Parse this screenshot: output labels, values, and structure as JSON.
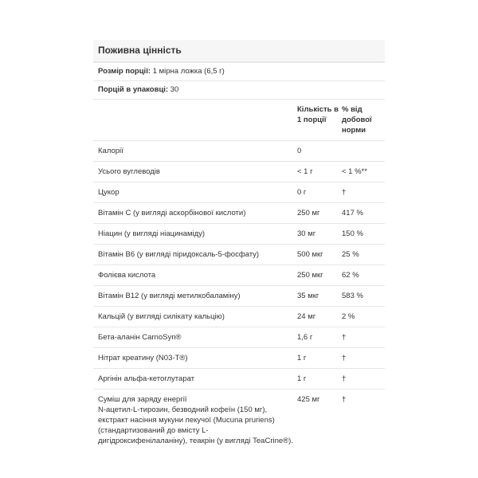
{
  "title": "Поживна цінність",
  "serving_size": {
    "label": "Розмір порції:",
    "value": "1 мірна ложка (6,5 г)"
  },
  "servings": {
    "label": "Порцій в упаковці:",
    "value": "30"
  },
  "headers": {
    "amount": "Кількість в 1 порції",
    "dv": "% від добової норми"
  },
  "rows": [
    {
      "name": "Калорії",
      "amount": "0",
      "dv": ""
    },
    {
      "name": "Усього вуглеводів",
      "amount": "< 1 г",
      "dv": "< 1 %**"
    },
    {
      "name": "Цукор",
      "amount": "0 г",
      "dv": "†"
    },
    {
      "name": "Вітамін C (у вигляді аскорбінової кислоти)",
      "amount": "250 мг",
      "dv": "417 %"
    },
    {
      "name": "Ніацин (у вигляді ніацинаміду)",
      "amount": "30 мг",
      "dv": "150 %"
    },
    {
      "name": "Вітамін B6 (у вигляді піридоксаль-5-фосфату)",
      "amount": "500 мкг",
      "dv": "25 %"
    },
    {
      "name": "Фолієва кислота",
      "amount": "250 мкг",
      "dv": "62 %"
    },
    {
      "name": "Вітамін B12 (у вигляді метилкобаламіну)",
      "amount": "35 мкг",
      "dv": "583 %"
    },
    {
      "name": "Кальцій (у вигляді силікату кальцію)",
      "amount": "24 мг",
      "dv": "2 %"
    },
    {
      "name": "Бета-аланін CarnoSyn®",
      "amount": "1,6 г",
      "dv": "†"
    },
    {
      "name": "Нітрат креатину (N03-T®)",
      "amount": "1 г",
      "dv": "†"
    },
    {
      "name": "Аргінін альфа-кетоглутарат",
      "amount": "1 г",
      "dv": "†"
    }
  ],
  "blend": {
    "name": "Суміш для заряду енергії",
    "description": "N-ацетил-L-тирозин, безводний кофеїн (150 мг), екстракт насіння мукуни пекучої (Mucuna pruriens) (стандартизований до вмісту L-дигідроксифенілаланіну), теакрін (у вигляді TeaCrine®).",
    "amount": "425 мг",
    "dv": "†"
  }
}
